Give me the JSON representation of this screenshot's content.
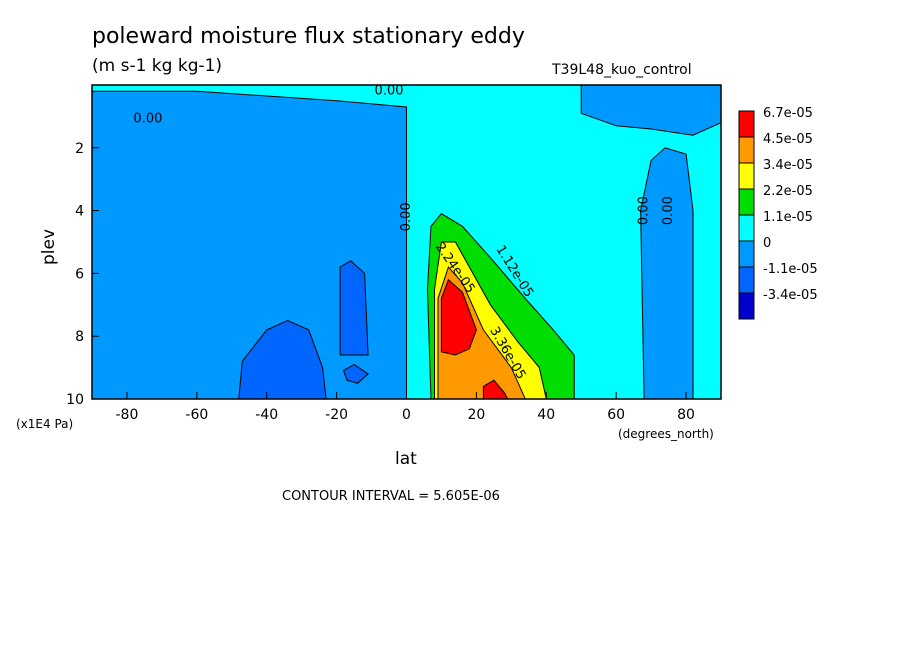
{
  "chart_data": {
    "type": "heatmap",
    "title": "poleward moisture flux stationary eddy",
    "subtitle": "(m s-1 kg kg-1)",
    "dataset_label": "T39L48_kuo_control",
    "xlabel": "lat",
    "xunits": "(degrees_north)",
    "ylabel": "plev",
    "yunits": "(x1E4 Pa)",
    "xlim": [
      -90,
      90
    ],
    "ylim": [
      10,
      0
    ],
    "x_ticks": [
      -80,
      -60,
      -40,
      -20,
      0,
      20,
      40,
      60,
      80
    ],
    "y_ticks": [
      2,
      4,
      6,
      8,
      10
    ],
    "contour_interval_text": "CONTOUR INTERVAL = 5.605E-06",
    "legend": {
      "placement": "right",
      "entries": [
        {
          "label": "6.7e-05",
          "color": "#ff0000"
        },
        {
          "label": "4.5e-05",
          "color": "#ff9900"
        },
        {
          "label": "3.4e-05",
          "color": "#ffff00"
        },
        {
          "label": "2.2e-05",
          "color": "#00dd00"
        },
        {
          "label": "1.1e-05",
          "color": "#00ffff"
        },
        {
          "label": "0",
          "color": "#0099ff"
        },
        {
          "label": "-1.1e-05",
          "color": "#0066ff"
        },
        {
          "label": "-3.4e-05",
          "color": "#0000cc"
        }
      ]
    },
    "regions": [
      {
        "name": "southern-high-band",
        "color": "#0099ff",
        "points": [
          [
            -90,
            0.2
          ],
          [
            -60,
            0.2
          ],
          [
            -20,
            0.5
          ],
          [
            0,
            0.7
          ],
          [
            0,
            10
          ],
          [
            -90,
            10
          ]
        ]
      },
      {
        "name": "tropical-negative",
        "color": "#0066ff",
        "points": [
          [
            -48,
            10
          ],
          [
            -47,
            8.8
          ],
          [
            -40,
            7.8
          ],
          [
            -34,
            7.5
          ],
          [
            -28,
            7.8
          ],
          [
            -24,
            9.0
          ],
          [
            -23,
            10
          ]
        ]
      },
      {
        "name": "negative-subtropical-cell",
        "color": "#0066ff",
        "points": [
          [
            -19,
            8.6
          ],
          [
            -19,
            5.8
          ],
          [
            -16,
            5.6
          ],
          [
            -12,
            6.0
          ],
          [
            -11,
            8.6
          ]
        ]
      },
      {
        "name": "small-negative-cell",
        "color": "#0066ff",
        "points": [
          [
            -18,
            9.1
          ],
          [
            -15,
            8.9
          ],
          [
            -11,
            9.2
          ],
          [
            -14,
            9.5
          ],
          [
            -17,
            9.4
          ]
        ]
      },
      {
        "name": "positive-lobe-1",
        "color": "#00dd00",
        "points": [
          [
            7,
            10
          ],
          [
            6,
            6.5
          ],
          [
            7,
            4.5
          ],
          [
            10,
            4.1
          ],
          [
            16,
            4.5
          ],
          [
            24,
            5.5
          ],
          [
            34,
            6.8
          ],
          [
            42,
            7.8
          ],
          [
            48,
            8.6
          ],
          [
            48,
            10
          ]
        ]
      },
      {
        "name": "positive-lobe-2",
        "color": "#ffff00",
        "points": [
          [
            8,
            10
          ],
          [
            8,
            6.5
          ],
          [
            10,
            5.0
          ],
          [
            14,
            5.0
          ],
          [
            18,
            5.8
          ],
          [
            24,
            7.0
          ],
          [
            32,
            8.2
          ],
          [
            38,
            9.0
          ],
          [
            40,
            10
          ]
        ]
      },
      {
        "name": "positive-lobe-3",
        "color": "#ff9900",
        "points": [
          [
            9,
            10
          ],
          [
            9,
            6.8
          ],
          [
            12,
            5.8
          ],
          [
            16,
            6.3
          ],
          [
            22,
            7.8
          ],
          [
            30,
            9.0
          ],
          [
            34,
            10
          ]
        ]
      },
      {
        "name": "positive-max",
        "color": "#ff0000",
        "points": [
          [
            10,
            8.5
          ],
          [
            10,
            6.8
          ],
          [
            12,
            6.2
          ],
          [
            16,
            6.6
          ],
          [
            20,
            7.8
          ],
          [
            18,
            8.4
          ],
          [
            14,
            8.6
          ]
        ]
      },
      {
        "name": "positive-max-surface",
        "color": "#ff0000",
        "points": [
          [
            22,
            10
          ],
          [
            22,
            9.6
          ],
          [
            25,
            9.4
          ],
          [
            28,
            9.8
          ],
          [
            29,
            10
          ]
        ]
      },
      {
        "name": "arctic-band",
        "color": "#0099ff",
        "points": [
          [
            68,
            10
          ],
          [
            67,
            4.0
          ],
          [
            70,
            2.4
          ],
          [
            74,
            2.0
          ],
          [
            80,
            2.2
          ],
          [
            82,
            4.0
          ],
          [
            82,
            10
          ]
        ]
      },
      {
        "name": "top-arctic",
        "color": "#0099ff",
        "points": [
          [
            50,
            0
          ],
          [
            90,
            0
          ],
          [
            90,
            1.2
          ],
          [
            82,
            1.6
          ],
          [
            70,
            1.4
          ],
          [
            60,
            1.3
          ],
          [
            50,
            0.9
          ]
        ]
      }
    ],
    "contour_labels": [
      {
        "text": "0.00",
        "x": -74,
        "y": 1.2,
        "rotate": 0
      },
      {
        "text": "0.00",
        "x": -5,
        "y": 0.3,
        "rotate": 0
      },
      {
        "text": "0.00",
        "x": 1,
        "y": 4.2,
        "rotate": -90
      },
      {
        "text": "0.00",
        "x": 69,
        "y": 4.0,
        "rotate": -90
      },
      {
        "text": "0.00",
        "x": 76,
        "y": 4.0,
        "rotate": -90
      },
      {
        "text": "2.24e-05",
        "x": 13,
        "y": 5.9,
        "rotate": 55
      },
      {
        "text": "1.12e-05",
        "x": 30,
        "y": 6.0,
        "rotate": 58
      },
      {
        "text": "3.36e-05",
        "x": 28,
        "y": 8.6,
        "rotate": 60
      }
    ]
  }
}
